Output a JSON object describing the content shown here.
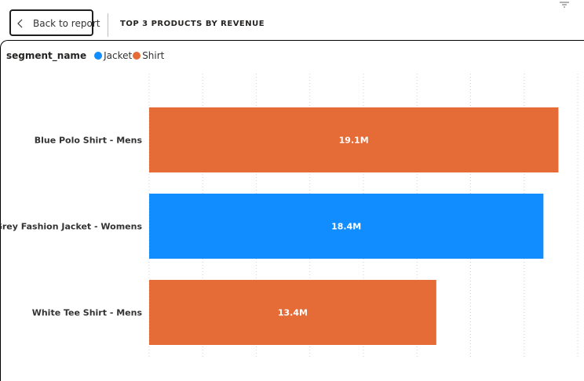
{
  "header": {
    "back_label": "Back to report",
    "title": "TOP 3 PRODUCTS BY REVENUE"
  },
  "colors": {
    "Jacket": "#118DFF",
    "Shirt": "#E66C37"
  },
  "icons": {
    "back": "chevron-left-icon",
    "filter": "filter-icon"
  },
  "legend": {
    "title": "segment_name",
    "items": [
      {
        "label": "Jacket",
        "color": "#118DFF"
      },
      {
        "label": "Shirt",
        "color": "#E66C37"
      }
    ]
  },
  "chart_data": {
    "type": "bar",
    "orientation": "horizontal",
    "title": "TOP 3 PRODUCTS BY REVENUE",
    "legend_title": "segment_name",
    "legend_position": "top-left",
    "grid": true,
    "xlim": [
      0,
      20000000
    ],
    "categories": [
      "Blue Polo Shirt - Mens",
      "Grey Fashion Jacket - Womens",
      "White Tee Shirt - Mens"
    ],
    "values": [
      19100000,
      18400000,
      13400000
    ],
    "data_labels": [
      "19.1M",
      "18.4M",
      "13.4M"
    ],
    "segments": [
      "Shirt",
      "Jacket",
      "Shirt"
    ]
  }
}
